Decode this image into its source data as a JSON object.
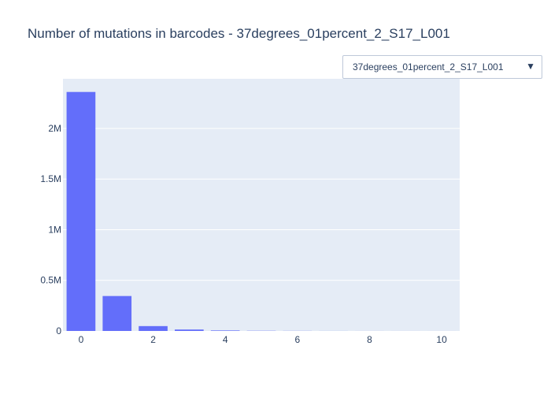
{
  "colors": {
    "bar": "#636efa",
    "plot_bg": "#e5ecf6",
    "grid": "#ffffff",
    "text": "#2a3f5f"
  },
  "dropdown": {
    "selected": "37degrees_01percent_2_S17_L001",
    "icon": "caret-down-icon"
  },
  "chart_data": {
    "type": "bar",
    "title": "Number of mutations in barcodes - 37degrees_01percent_2_S17_L001",
    "xlabel": "",
    "ylabel": "",
    "x": [
      0,
      1,
      2,
      3,
      4,
      5,
      6,
      7,
      8,
      9,
      10
    ],
    "values": [
      2360000,
      345000,
      48000,
      14000,
      5000,
      2000,
      1000,
      500,
      300,
      200,
      100
    ],
    "xlim": [
      -0.5,
      10.5
    ],
    "ylim": [
      0,
      2490000
    ],
    "x_ticks": [
      0,
      2,
      4,
      6,
      8,
      10
    ],
    "y_ticks": [
      0,
      500000,
      1000000,
      1500000,
      2000000
    ],
    "y_tick_labels": [
      "0",
      "0.5M",
      "1M",
      "1.5M",
      "2M"
    ],
    "grid": true,
    "legend": "none"
  }
}
